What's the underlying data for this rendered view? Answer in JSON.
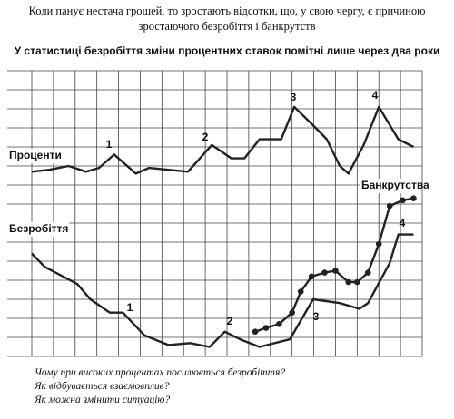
{
  "chart_data": {
    "type": "line",
    "title": "Коли панує нестача грошей, то зростають відсотки, що, у свою чергу, є причиною зростаючого безробіття і банкрутств",
    "subtitle": "У статистиці безробіття зміни процентних ставок помітні лише через два роки",
    "xlim": [
      0,
      18
    ],
    "ylim": [
      0,
      15
    ],
    "xticks": [
      0,
      1,
      2,
      3,
      4,
      5,
      6,
      7,
      8,
      9,
      10,
      11,
      12,
      13,
      14,
      15,
      16,
      17,
      18
    ],
    "yticks": [
      0,
      1,
      2,
      3,
      4,
      5,
      6,
      7,
      8,
      9,
      10,
      11,
      12,
      13,
      14,
      15
    ],
    "grid": true,
    "series": [
      {
        "name": "Проценти",
        "color": "#222222",
        "markers": false,
        "x": [
          0,
          0.8,
          1.7,
          2.5,
          3.1,
          3.8,
          4.8,
          5.4,
          6.3,
          7.2,
          8.3,
          9.2,
          9.8,
          10.5,
          11.5,
          12.1,
          13,
          13.6,
          14.2,
          14.6,
          15.3,
          16,
          16.9,
          17.6
        ],
        "values": [
          9.7,
          9.8,
          10,
          9.7,
          9.9,
          10.6,
          9.6,
          9.9,
          9.8,
          9.7,
          11.1,
          10.4,
          10.4,
          11.4,
          11.4,
          13.1,
          12.1,
          11.4,
          10,
          9.6,
          11.1,
          13.1,
          11.4,
          11
        ]
      },
      {
        "name": "Безробіття",
        "color": "#222222",
        "markers": false,
        "x": [
          0,
          0.6,
          2.1,
          2.7,
          3.6,
          4.2,
          5.2,
          6.3,
          7.3,
          8.2,
          8.9,
          9.6,
          10.5,
          11.9,
          12.97,
          14.2,
          15.1,
          15.5,
          16.5,
          16.9,
          17.6
        ],
        "values": [
          5.4,
          4.7,
          3.8,
          3,
          2.3,
          2.3,
          1.1,
          0.6,
          0.7,
          0.5,
          1.3,
          0.9,
          0.5,
          0.9,
          3,
          2.8,
          2.5,
          2.8,
          4.9,
          6.4,
          6.4
        ]
      },
      {
        "name": "Банкрутства",
        "color": "#222222",
        "markers": true,
        "x": [
          10.3,
          10.8,
          11.4,
          12,
          12.4,
          12.9,
          13.5,
          14,
          14.6,
          15,
          15.5,
          16,
          16.5,
          17.1,
          17.6
        ],
        "values": [
          1.3,
          1.5,
          1.7,
          2.3,
          3.4,
          4.2,
          4.4,
          4.5,
          3.9,
          3.9,
          4.4,
          5.9,
          7.9,
          8.2,
          8.3
        ]
      }
    ],
    "annotations": [
      "1",
      "2",
      "3",
      "4",
      "1",
      "2",
      "3",
      "4"
    ],
    "questions": [
      "Чому при високих процентах посилюється безробіття?",
      "Як відбувається взаємовплив?",
      "Як можна змінити ситуацію?"
    ]
  }
}
